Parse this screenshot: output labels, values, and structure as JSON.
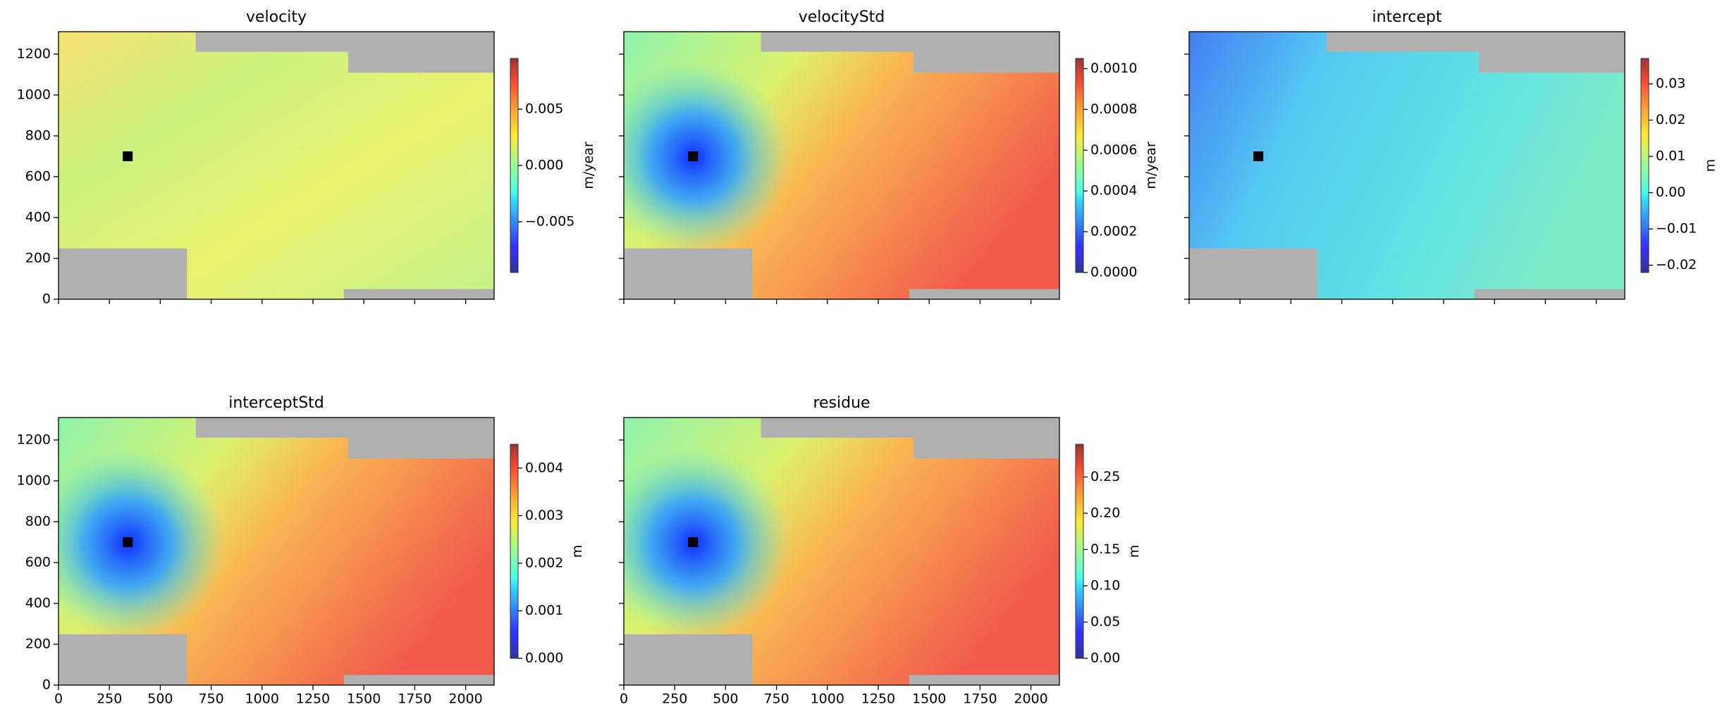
{
  "chart_data": [
    {
      "type": "image",
      "title": "velocity",
      "xlim": [
        0,
        2140
      ],
      "ylim": [
        0,
        1310
      ],
      "xticks": [
        0,
        250,
        500,
        750,
        1000,
        1250,
        1500,
        1750,
        2000
      ],
      "yticks": [
        0,
        200,
        400,
        600,
        800,
        1000,
        1200
      ],
      "colormap": "jet",
      "reference_point": {
        "x": 340,
        "y": 700
      },
      "colorbar": {
        "label": "m/year",
        "lim": [
          -0.0095,
          0.0095
        ],
        "ticks": [
          {
            "value": -0.005,
            "label": "−0.005"
          },
          {
            "value": 0,
            "label": "0.000"
          },
          {
            "value": 0.005,
            "label": "0.005"
          }
        ]
      }
    },
    {
      "type": "image",
      "title": "velocityStd",
      "xlim": [
        0,
        2140
      ],
      "ylim": [
        0,
        1310
      ],
      "xticks": [
        0,
        250,
        500,
        750,
        1000,
        1250,
        1500,
        1750,
        2000
      ],
      "yticks": [
        0,
        200,
        400,
        600,
        800,
        1000,
        1200
      ],
      "colormap": "jet",
      "reference_point": {
        "x": 340,
        "y": 700
      },
      "colorbar": {
        "label": "m/year",
        "lim": [
          0,
          0.00105
        ],
        "ticks": [
          {
            "value": 0,
            "label": "0.0000"
          },
          {
            "value": 0.0002,
            "label": "0.0002"
          },
          {
            "value": 0.0004,
            "label": "0.0004"
          },
          {
            "value": 0.0006,
            "label": "0.0006"
          },
          {
            "value": 0.0008,
            "label": "0.0008"
          },
          {
            "value": 0.001,
            "label": "0.0010"
          }
        ]
      }
    },
    {
      "type": "image",
      "title": "intercept",
      "xlim": [
        0,
        2140
      ],
      "ylim": [
        0,
        1310
      ],
      "xticks": [
        0,
        250,
        500,
        750,
        1000,
        1250,
        1500,
        1750,
        2000
      ],
      "yticks": [
        0,
        200,
        400,
        600,
        800,
        1000,
        1200
      ],
      "colormap": "jet",
      "reference_point": {
        "x": 340,
        "y": 700
      },
      "colorbar": {
        "label": "m",
        "lim": [
          -0.022,
          0.037
        ],
        "ticks": [
          {
            "value": -0.02,
            "label": "−0.02"
          },
          {
            "value": -0.01,
            "label": "−0.01"
          },
          {
            "value": 0,
            "label": "0.00"
          },
          {
            "value": 0.01,
            "label": "0.01"
          },
          {
            "value": 0.02,
            "label": "0.02"
          },
          {
            "value": 0.03,
            "label": "0.03"
          }
        ]
      }
    },
    {
      "type": "image",
      "title": "interceptStd",
      "xlim": [
        0,
        2140
      ],
      "ylim": [
        0,
        1310
      ],
      "xticks": [
        0,
        250,
        500,
        750,
        1000,
        1250,
        1500,
        1750,
        2000
      ],
      "yticks": [
        0,
        200,
        400,
        600,
        800,
        1000,
        1200
      ],
      "colormap": "jet",
      "reference_point": {
        "x": 340,
        "y": 700
      },
      "colorbar": {
        "label": "m",
        "lim": [
          0,
          0.0045
        ],
        "ticks": [
          {
            "value": 0,
            "label": "0.000"
          },
          {
            "value": 0.001,
            "label": "0.001"
          },
          {
            "value": 0.002,
            "label": "0.002"
          },
          {
            "value": 0.003,
            "label": "0.003"
          },
          {
            "value": 0.004,
            "label": "0.004"
          }
        ]
      }
    },
    {
      "type": "image",
      "title": "residue",
      "xlim": [
        0,
        2140
      ],
      "ylim": [
        0,
        1310
      ],
      "xticks": [
        0,
        250,
        500,
        750,
        1000,
        1250,
        1500,
        1750,
        2000
      ],
      "yticks": [
        0,
        200,
        400,
        600,
        800,
        1000,
        1200
      ],
      "colormap": "jet",
      "reference_point": {
        "x": 340,
        "y": 700
      },
      "colorbar": {
        "label": "m",
        "lim": [
          0,
          0.295
        ],
        "ticks": [
          {
            "value": 0,
            "label": "0.00"
          },
          {
            "value": 0.05,
            "label": "0.05"
          },
          {
            "value": 0.1,
            "label": "0.10"
          },
          {
            "value": 0.15,
            "label": "0.15"
          },
          {
            "value": 0.2,
            "label": "0.20"
          },
          {
            "value": 0.25,
            "label": "0.25"
          }
        ]
      }
    }
  ]
}
